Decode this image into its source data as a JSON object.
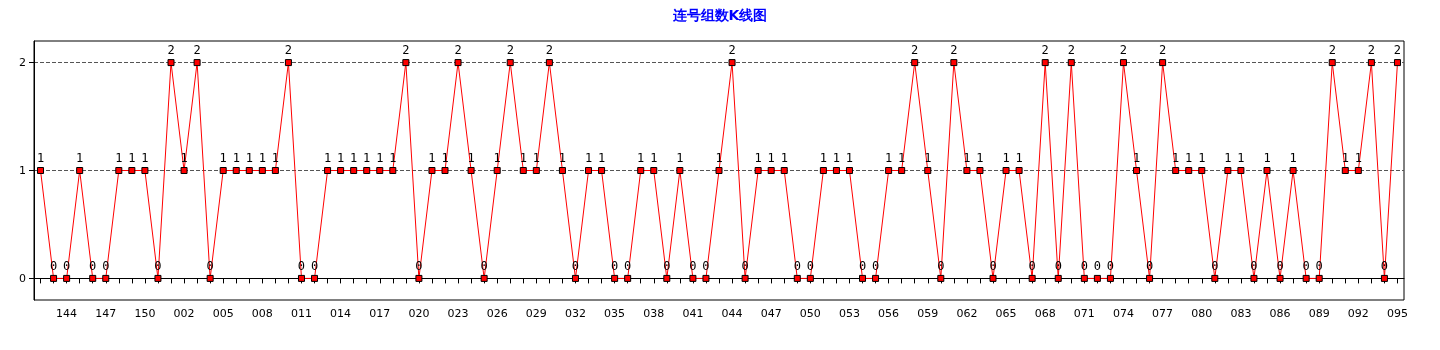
{
  "chart_data": {
    "type": "line",
    "title": "连号组数K线图",
    "categories": [
      null,
      null,
      "144",
      null,
      null,
      "147",
      null,
      null,
      "150",
      null,
      null,
      "002",
      null,
      null,
      "005",
      null,
      null,
      "008",
      null,
      null,
      "011",
      null,
      null,
      "014",
      null,
      null,
      "017",
      null,
      null,
      "020",
      null,
      null,
      "023",
      null,
      null,
      "026",
      null,
      null,
      "029",
      null,
      null,
      "032",
      null,
      null,
      "035",
      null,
      null,
      "038",
      null,
      null,
      "041",
      null,
      null,
      "044",
      null,
      null,
      "047",
      null,
      null,
      "050",
      null,
      null,
      "053",
      null,
      null,
      "056",
      null,
      null,
      "059",
      null,
      null,
      "062",
      null,
      null,
      "065",
      null,
      null,
      "068",
      null,
      null,
      "071",
      null,
      null,
      "074",
      null,
      null,
      "077",
      null,
      null,
      "080",
      null,
      null,
      "083",
      null,
      null,
      "086",
      null,
      null,
      "089",
      null,
      null,
      "092",
      null,
      null,
      "095"
    ],
    "series": [
      {
        "color": "#ff0000",
        "values": [
          1,
          0,
          0,
          1,
          0,
          0,
          1,
          1,
          1,
          0,
          2,
          1,
          2,
          0,
          1,
          1,
          1,
          1,
          1,
          2,
          0,
          0,
          1,
          1,
          1,
          1,
          1,
          1,
          2,
          0,
          1,
          1,
          2,
          1,
          0,
          1,
          2,
          1,
          1,
          2,
          1,
          0,
          1,
          1,
          0,
          0,
          1,
          1,
          0,
          1,
          0,
          0,
          1,
          2,
          0,
          1,
          1,
          1,
          0,
          0,
          1,
          1,
          1,
          0,
          0,
          1,
          1,
          2,
          1,
          0,
          2,
          1,
          1,
          0,
          1,
          1,
          0,
          2,
          0,
          2,
          0,
          0,
          0,
          2,
          1,
          0,
          2,
          1,
          1,
          1,
          0,
          1,
          1,
          0,
          1,
          0,
          1,
          0,
          0,
          2,
          1,
          1,
          2,
          0,
          2
        ]
      }
    ],
    "ylim": [
      -0.2,
      2.2
    ],
    "yticks": [
      0,
      1,
      2
    ],
    "grid": "y",
    "marker": "square",
    "line_style": "solid",
    "data_labels": true
  }
}
